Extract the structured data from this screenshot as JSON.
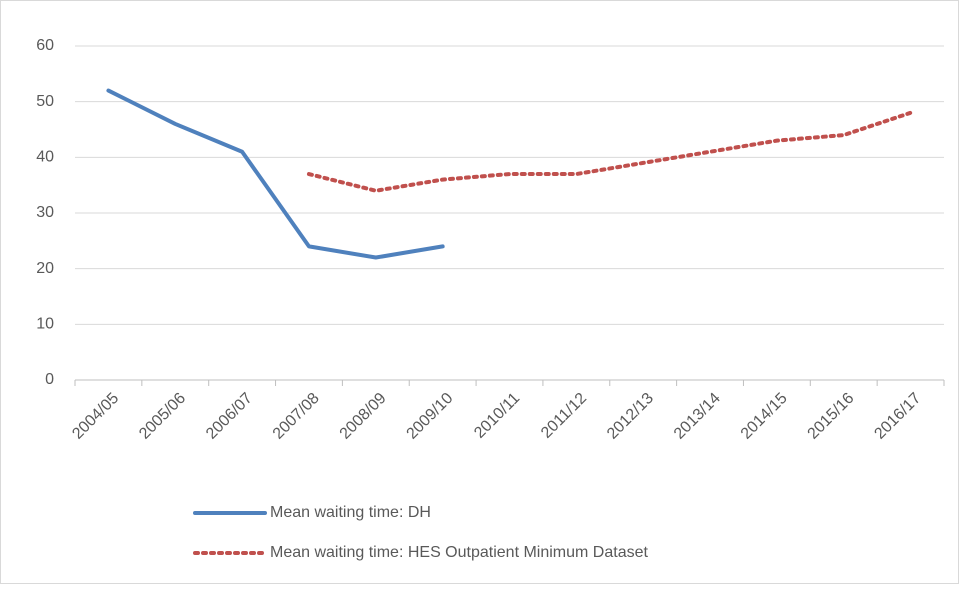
{
  "chart_data": {
    "type": "line",
    "categories": [
      "2004/05",
      "2005/06",
      "2006/07",
      "2007/08",
      "2008/09",
      "2009/10",
      "2010/11",
      "2011/12",
      "2012/13",
      "2013/14",
      "2014/15",
      "2015/16",
      "2016/17"
    ],
    "series": [
      {
        "name": "Mean waiting time: DH",
        "color": "#4f81bd",
        "line_style": "solid",
        "values": [
          52,
          46,
          41,
          24,
          22,
          24,
          null,
          null,
          null,
          null,
          null,
          null,
          null
        ]
      },
      {
        "name": "Mean waiting time: HES Outpatient Minimum Dataset",
        "color": "#c0504d",
        "line_style": "dotted",
        "values": [
          null,
          null,
          null,
          37,
          34,
          36,
          37,
          37,
          39,
          41,
          43,
          44,
          48
        ]
      }
    ],
    "ylim": [
      0,
      60
    ],
    "yticks": [
      0,
      10,
      20,
      30,
      40,
      50,
      60
    ],
    "grid": true
  }
}
